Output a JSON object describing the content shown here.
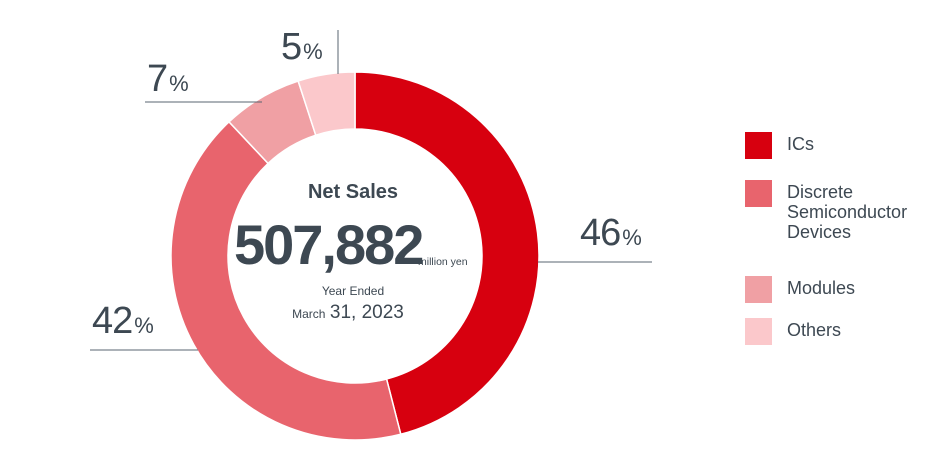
{
  "chart_data": {
    "type": "pie",
    "title": "Net Sales",
    "total": "507,882",
    "unit": "million yen",
    "period_line1": "Year Ended",
    "period_prefix": "March",
    "period_date": "31, 2023",
    "pct_symbol": "%",
    "slices": [
      {
        "label": "ICs",
        "value": 46,
        "color": "#d7000f"
      },
      {
        "label": "Discrete Semiconductor Devices",
        "value": 42,
        "color": "#e8646d"
      },
      {
        "label": "Modules",
        "value": 7,
        "color": "#f0a0a4"
      },
      {
        "label": "Others",
        "value": 5,
        "color": "#fbc8cb"
      }
    ],
    "legend": [
      {
        "lines": [
          "ICs"
        ],
        "color": "#d7000f"
      },
      {
        "lines": [
          "Discrete",
          "Semiconductor",
          "Devices"
        ],
        "color": "#e8646d"
      },
      {
        "lines": [
          "Modules"
        ],
        "color": "#f0a0a4"
      },
      {
        "lines": [
          "Others"
        ],
        "color": "#fbc8cb"
      }
    ]
  }
}
